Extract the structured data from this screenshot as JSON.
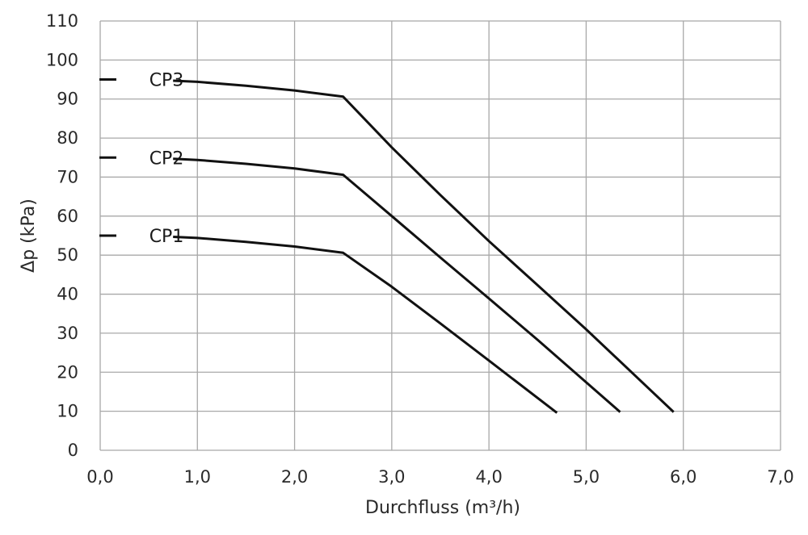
{
  "chart_data": {
    "type": "line",
    "title": "",
    "xlabel": "Durchfluss (m³/h)",
    "ylabel": "Δp (kPa)",
    "xlim": [
      0,
      7
    ],
    "ylim": [
      0,
      110
    ],
    "x_ticks": [
      "0,0",
      "1,0",
      "2,0",
      "3,0",
      "4,0",
      "5,0",
      "6,0",
      "7,0"
    ],
    "y_ticks": [
      "0",
      "10",
      "20",
      "30",
      "40",
      "50",
      "60",
      "70",
      "80",
      "90",
      "100",
      "110"
    ],
    "grid": true,
    "legend": "none",
    "series": [
      {
        "name": "CP1",
        "points": [
          [
            0.0,
            55
          ],
          [
            0.75,
            54.7
          ],
          [
            1.0,
            54.4
          ],
          [
            1.5,
            53.4
          ],
          [
            2.0,
            52.2
          ],
          [
            2.5,
            50.6
          ],
          [
            3.0,
            41.9
          ],
          [
            3.5,
            32.5
          ],
          [
            4.0,
            23.0
          ],
          [
            4.7,
            9.6
          ]
        ]
      },
      {
        "name": "CP2",
        "points": [
          [
            0.0,
            75
          ],
          [
            0.75,
            74.7
          ],
          [
            1.0,
            74.4
          ],
          [
            1.5,
            73.4
          ],
          [
            2.0,
            72.2
          ],
          [
            2.5,
            70.6
          ],
          [
            3.0,
            60.0
          ],
          [
            3.5,
            49.4
          ],
          [
            4.0,
            38.9
          ],
          [
            4.5,
            28.3
          ],
          [
            5.35,
            9.8
          ]
        ]
      },
      {
        "name": "CP3",
        "points": [
          [
            0.0,
            95
          ],
          [
            0.75,
            94.7
          ],
          [
            1.0,
            94.4
          ],
          [
            1.5,
            93.4
          ],
          [
            2.0,
            92.2
          ],
          [
            2.5,
            90.6
          ],
          [
            3.0,
            77.6
          ],
          [
            3.5,
            65.4
          ],
          [
            4.0,
            53.6
          ],
          [
            4.5,
            42.3
          ],
          [
            5.0,
            31.0
          ],
          [
            5.9,
            9.8
          ]
        ]
      }
    ]
  }
}
